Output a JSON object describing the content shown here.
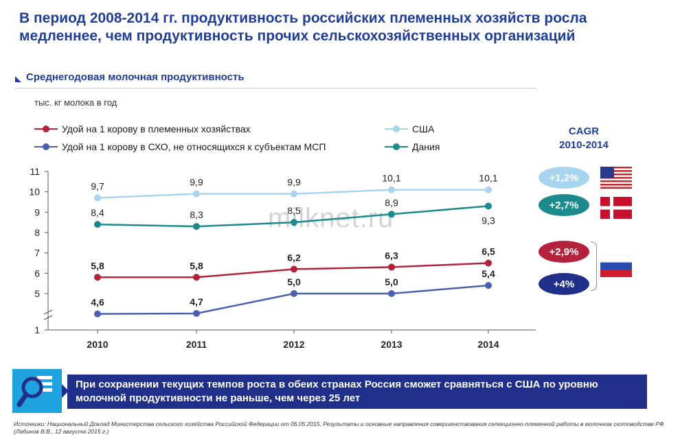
{
  "header": {
    "title": "В период 2008-2014 гг. продуктивность российских племенных хозяйств росла медленнее, чем продуктивность прочих сельскохозяйственных организаций",
    "subtitle": "Среднегодовая молочная продуктивность"
  },
  "watermark": "milknet.ru",
  "chart_data": {
    "type": "line",
    "ylabel": "тыс. кг молока в год",
    "categories": [
      "2010",
      "2011",
      "2012",
      "2013",
      "2014"
    ],
    "y_ticks": [
      "1",
      "5",
      "6",
      "7",
      "8",
      "9",
      "10",
      "11"
    ],
    "ylim": [
      1,
      11
    ],
    "axis_break": true,
    "legend_position": "top",
    "series": [
      {
        "name": "Удой на 1 корову в племенных хозяйствах",
        "color": "#b3223a",
        "values": [
          5.8,
          5.8,
          6.2,
          6.3,
          6.5
        ],
        "labels": [
          "5,8",
          "5,8",
          "6,2",
          "6,3",
          "6,5"
        ],
        "label_bold": true
      },
      {
        "name": "Удой на 1 корову в СХО, не относящихся к субъектам МСП",
        "color": "#4a5fb0",
        "values": [
          4.6,
          4.7,
          5.0,
          5.0,
          5.4
        ],
        "labels": [
          "4,6",
          "4,7",
          "5,0",
          "5,0",
          "5,4"
        ],
        "label_bold": true
      },
      {
        "name": "США",
        "color": "#a8d4ef",
        "values": [
          9.7,
          9.9,
          9.9,
          10.1,
          10.1
        ],
        "labels": [
          "9,7",
          "9,9",
          "9,9",
          "10,1",
          "10,1"
        ],
        "label_bold": false
      },
      {
        "name": "Дания",
        "color": "#1a8a8c",
        "values": [
          8.4,
          8.3,
          8.5,
          8.9,
          9.3
        ],
        "labels": [
          "8,4",
          "8,3",
          "8,5",
          "8,9",
          "9,3"
        ],
        "label_bold": false
      }
    ]
  },
  "cagr": {
    "title_line1": "CAGR",
    "title_line2": "2010-2014",
    "items": [
      {
        "value": "+1,2%",
        "color": "#a8d4ef",
        "flag": "usa-flag"
      },
      {
        "value": "+2,7%",
        "color": "#1a8a8c",
        "flag": "denmark-flag"
      },
      {
        "value": "+2,9%",
        "color": "#b3223a",
        "flag": "russia-flag"
      },
      {
        "value": "+4%",
        "color": "#1f2f8a",
        "flag": "russia-flag"
      }
    ]
  },
  "banner": {
    "icon": "magnifier-icon",
    "text": "При сохранении текущих темпов роста в обеих странах Россия сможет сравняться с США по уровню молочной продуктивности не раньше, чем через 25 лет"
  },
  "source": "Источники: Национальный Доклад Министерства сельского хозяйства Российской Федерации от 06.05.2015, Результаты и основные направления совершенствования селекционно-племенной работы в молочном скотоводстве РФ (Лабинов В.В., 12 августа 2015 г.)"
}
